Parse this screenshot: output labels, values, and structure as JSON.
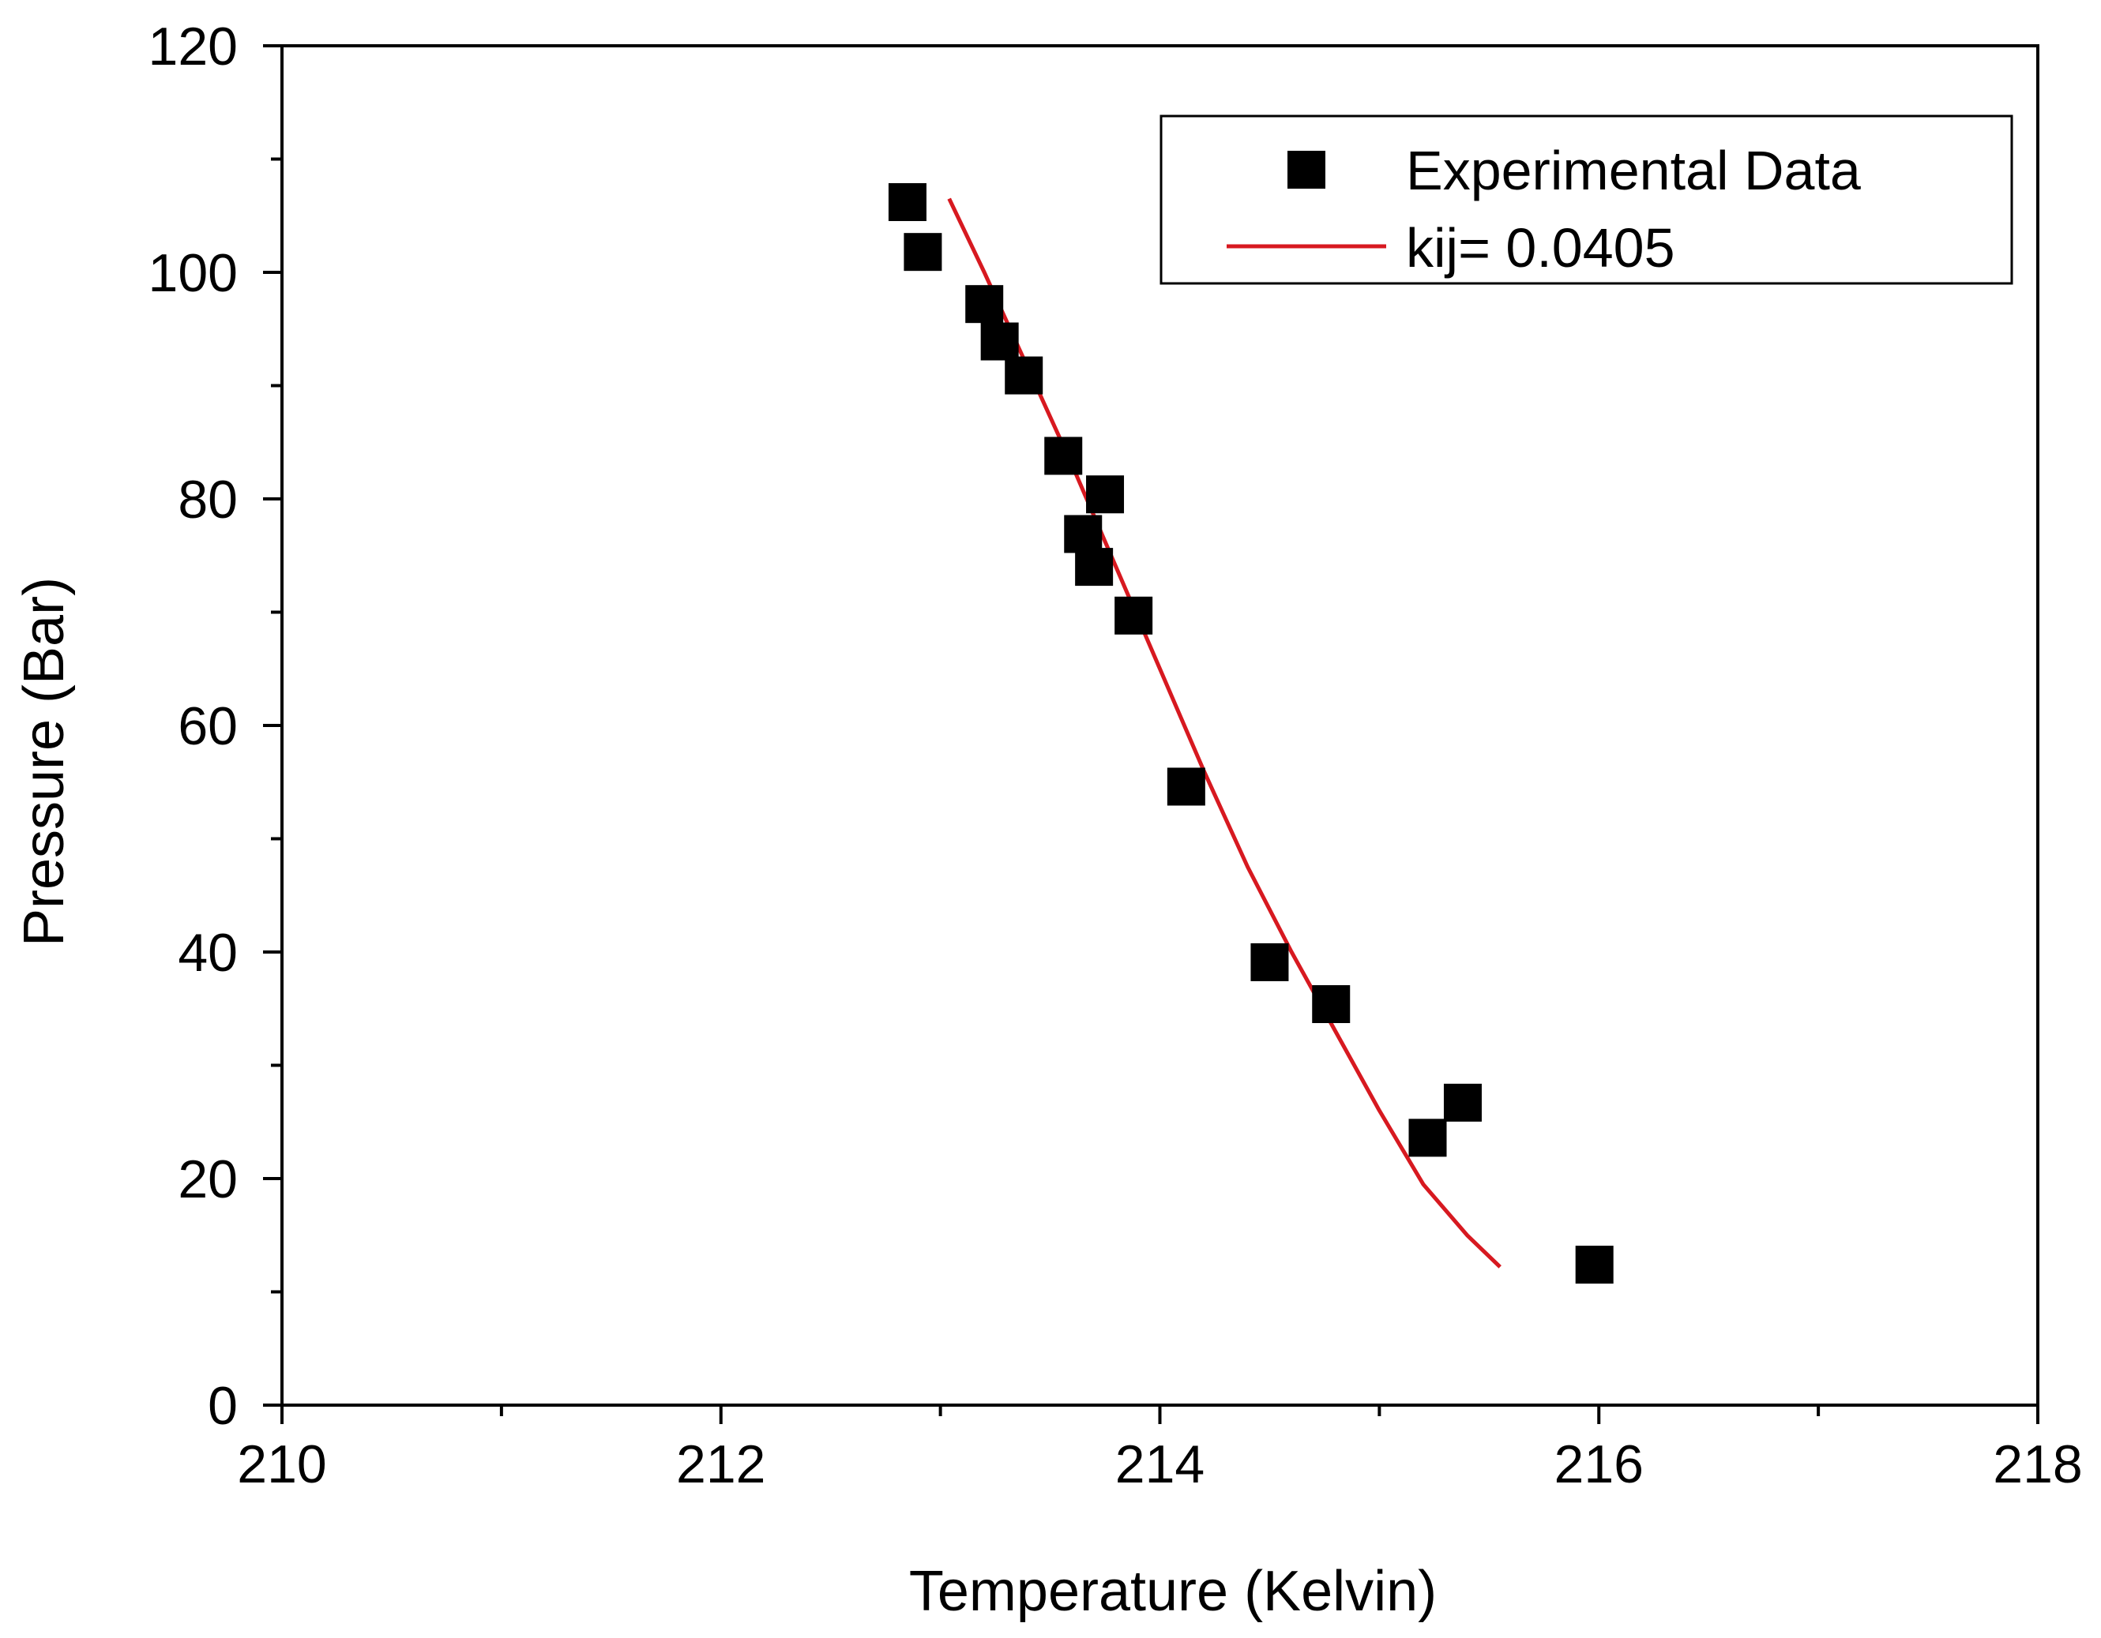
{
  "chart_data": {
    "type": "scatter",
    "title": "",
    "xlabel": "Temperature (Kelvin)",
    "ylabel": "Pressure (Bar)",
    "xlim": [
      210,
      218
    ],
    "ylim": [
      0,
      120
    ],
    "x_ticks": [
      210,
      212,
      214,
      216,
      218
    ],
    "x_minor_ticks": [
      211,
      213,
      215,
      217
    ],
    "y_ticks": [
      0,
      20,
      40,
      60,
      80,
      100,
      120
    ],
    "y_minor_ticks": [
      10,
      30,
      50,
      70,
      90,
      110
    ],
    "legend_position": "top-right",
    "series": [
      {
        "name": "Experimental Data",
        "kind": "scatter",
        "marker": "square",
        "color": "#000000",
        "points": [
          [
            212.85,
            106.2
          ],
          [
            212.92,
            101.8
          ],
          [
            213.2,
            97.2
          ],
          [
            213.27,
            93.9
          ],
          [
            213.38,
            90.9
          ],
          [
            213.56,
            83.8
          ],
          [
            213.75,
            80.4
          ],
          [
            213.65,
            76.9
          ],
          [
            213.7,
            74.0
          ],
          [
            213.88,
            69.7
          ],
          [
            214.12,
            54.6
          ],
          [
            214.5,
            39.1
          ],
          [
            214.78,
            35.4
          ],
          [
            215.22,
            23.6
          ],
          [
            215.38,
            26.7
          ],
          [
            215.98,
            12.4
          ]
        ]
      },
      {
        "name": "kij= 0.0405",
        "kind": "line",
        "color": "#d71920",
        "points": [
          [
            213.04,
            106.5
          ],
          [
            213.2,
            100.0
          ],
          [
            213.4,
            91.5
          ],
          [
            213.6,
            83.0
          ],
          [
            213.8,
            74.0
          ],
          [
            214.0,
            65.0
          ],
          [
            214.2,
            56.0
          ],
          [
            214.4,
            47.5
          ],
          [
            214.6,
            40.0
          ],
          [
            214.8,
            33.0
          ],
          [
            215.0,
            26.0
          ],
          [
            215.2,
            19.5
          ],
          [
            215.4,
            15.0
          ],
          [
            215.55,
            12.2
          ]
        ]
      }
    ]
  }
}
